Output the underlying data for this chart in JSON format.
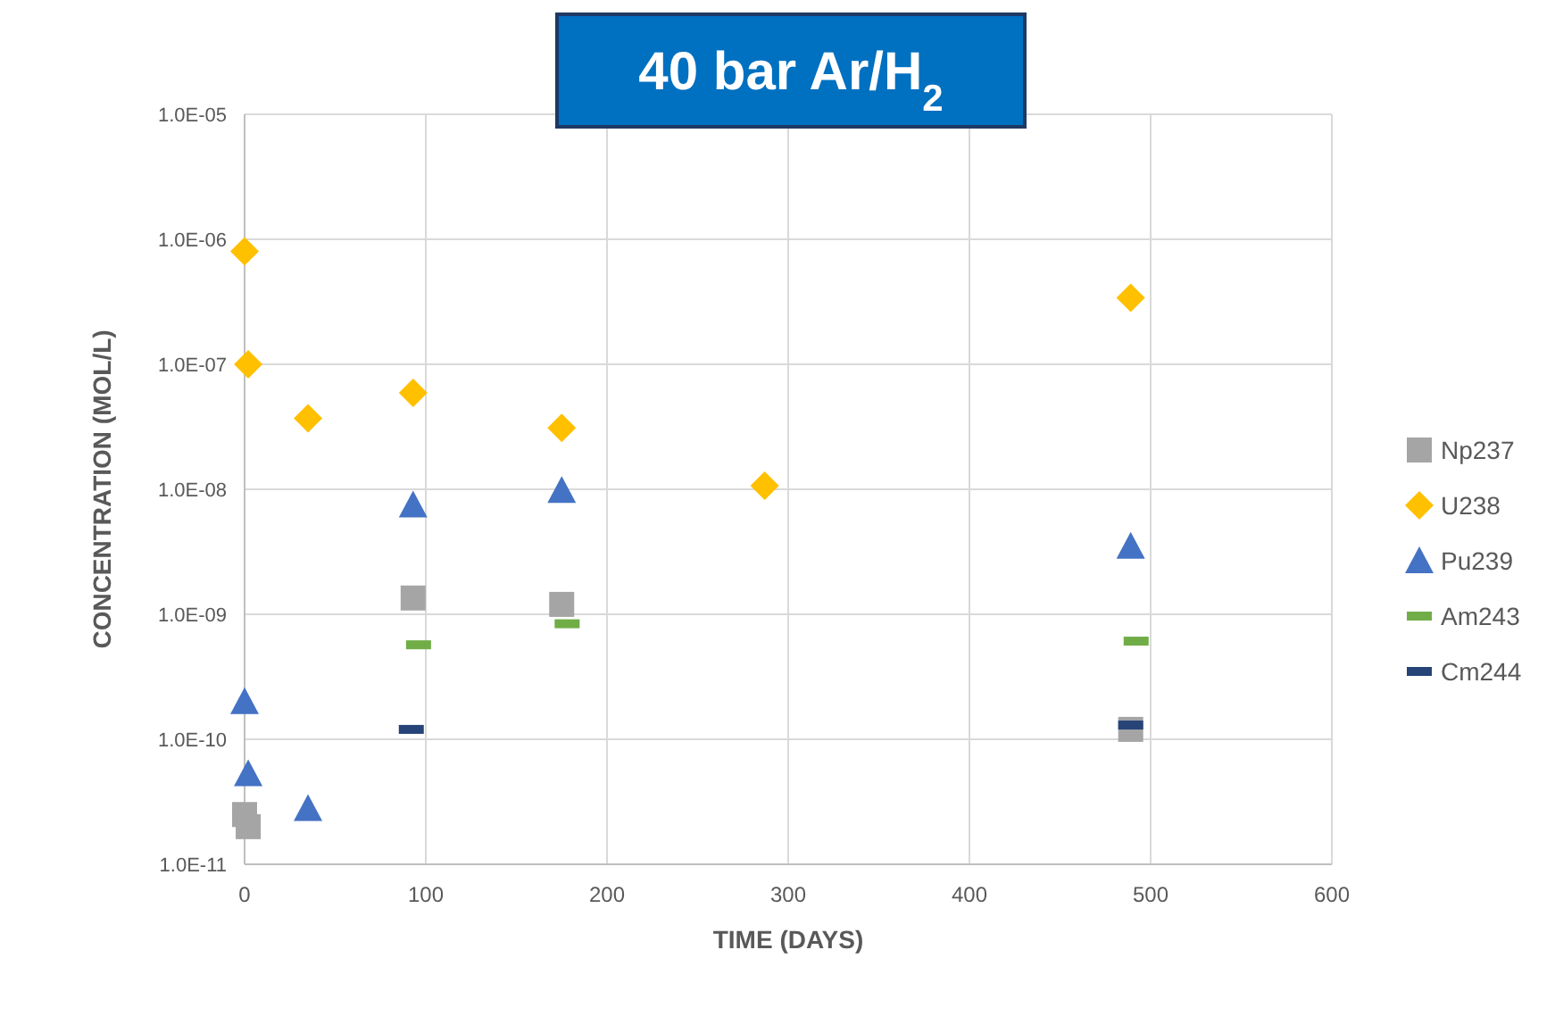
{
  "chart_data": {
    "type": "scatter",
    "title": "40 bar Ar/H$_{2}$",
    "xlabel": "TIME (DAYS)",
    "ylabel": "CONCENTRATION (MOL/L)",
    "log": "y",
    "grid": true,
    "legend": "right",
    "xlim": [
      0,
      600
    ],
    "xticks": [
      0,
      100,
      200,
      300,
      400,
      500,
      600
    ],
    "ylim": [
      1e-11,
      1e-05
    ],
    "yticks": [
      {
        "value": 1e-11,
        "label": "1.0E-11"
      },
      {
        "value": 1e-10,
        "label": "1.0E-10"
      },
      {
        "value": 1e-09,
        "label": "1.0E-09"
      },
      {
        "value": 1e-08,
        "label": "1.0E-08"
      },
      {
        "value": 1e-07,
        "label": "1.0E-07"
      },
      {
        "value": 1e-06,
        "label": "1.0E-06"
      },
      {
        "value": 1e-05,
        "label": "1.0E-05"
      }
    ],
    "series": [
      {
        "name": "Np237",
        "color": "#a5a5a5",
        "marker": "square",
        "x": [
          0,
          2,
          93,
          175,
          489
        ],
        "values": [
          2.5e-11,
          2e-11,
          1.35e-09,
          1.2e-09,
          1.2e-10
        ]
      },
      {
        "name": "U238",
        "color": "#ffc000",
        "marker": "diamond",
        "x": [
          0,
          2,
          35,
          93,
          175,
          287,
          489
        ],
        "values": [
          8e-07,
          1e-07,
          3.7e-08,
          5.9e-08,
          3.1e-08,
          1.07e-08,
          3.4e-07
        ]
      },
      {
        "name": "Pu239",
        "color": "#4472c4",
        "marker": "triangle",
        "x": [
          0,
          2,
          35,
          93,
          175,
          489
        ],
        "values": [
          2e-10,
          5.3e-11,
          2.8e-11,
          7.5e-09,
          9.8e-09,
          3.5e-09
        ]
      },
      {
        "name": "Am243",
        "color": "#70ad47",
        "x": [
          96,
          178,
          492
        ],
        "values": [
          5.7e-10,
          8.4e-10,
          6.1e-10
        ]
      },
      {
        "name": "Cm244",
        "color": "#264478",
        "x": [
          92,
          489
        ],
        "values": [
          1.2e-10,
          1.3e-10
        ]
      }
    ]
  }
}
